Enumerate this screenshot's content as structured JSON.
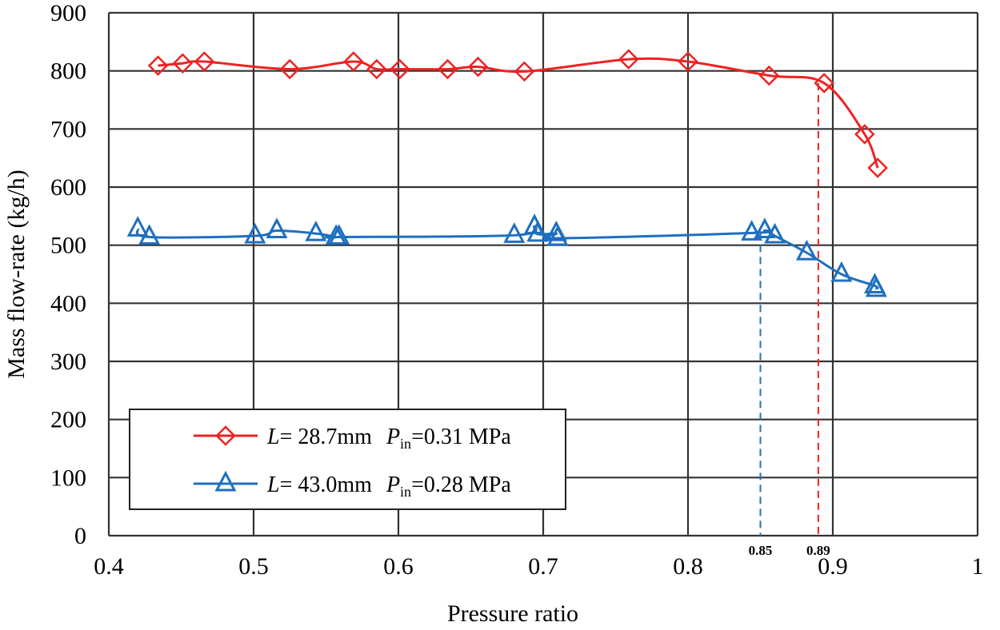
{
  "chart_data": {
    "type": "line",
    "title": "",
    "xlabel": "Pressure ratio",
    "ylabel": "Mass flow-rate (kg/h)",
    "xlim": [
      0.4,
      1.0
    ],
    "ylim": [
      0,
      900
    ],
    "xticks": [
      0.4,
      0.5,
      0.6,
      0.7,
      0.8,
      0.9,
      1.0
    ],
    "xtick_labels": [
      "0.4",
      "0.5",
      "0.6",
      "0.7",
      "0.8",
      "0.9",
      "1"
    ],
    "yticks": [
      0,
      100,
      200,
      300,
      400,
      500,
      600,
      700,
      800,
      900
    ],
    "ytick_labels": [
      "0",
      "100",
      "200",
      "300",
      "400",
      "500",
      "600",
      "700",
      "800",
      "900"
    ],
    "grid": true,
    "legend_placement": "lower-left",
    "series": [
      {
        "name": "L= 28.7mm  Pin=0.31 MPa",
        "legend": {
          "var1": "L",
          "text1": "= 28.7mm",
          "var2": "P",
          "sub2": "in",
          "text2": "=0.31 MPa"
        },
        "color": "#ee2222",
        "marker": "diamond",
        "x": [
          0.434,
          0.451,
          0.466,
          0.525,
          0.569,
          0.585,
          0.601,
          0.634,
          0.655,
          0.687,
          0.759,
          0.8,
          0.856,
          0.894,
          0.922,
          0.931
        ],
        "y": [
          809,
          813,
          816,
          803,
          816,
          803,
          803,
          803,
          807,
          799,
          820,
          816,
          792,
          779,
          691,
          633
        ]
      },
      {
        "name": "L= 43.0mm  Pin=0.28 MPa",
        "legend": {
          "var1": "L",
          "text1": "= 43.0mm",
          "var2": "P",
          "sub2": "in",
          "text2": "=0.28 MPa"
        },
        "color": "#1f6fbf",
        "marker": "triangle",
        "x": [
          0.42,
          0.428,
          0.501,
          0.516,
          0.543,
          0.557,
          0.559,
          0.68,
          0.694,
          0.696,
          0.709,
          0.71,
          0.844,
          0.853,
          0.86,
          0.882,
          0.906,
          0.929,
          0.93
        ],
        "y": [
          528,
          514,
          516,
          525,
          520,
          514,
          514,
          517,
          532,
          519,
          520,
          512,
          521,
          525,
          516,
          487,
          450,
          430,
          424
        ]
      }
    ],
    "annotations": [
      {
        "text": "0.85",
        "x": 0.85,
        "y_top": 521,
        "color": "#1f6fbf"
      },
      {
        "text": "0.89",
        "x": 0.89,
        "y_top": 779,
        "color": "#ee2222"
      }
    ]
  }
}
